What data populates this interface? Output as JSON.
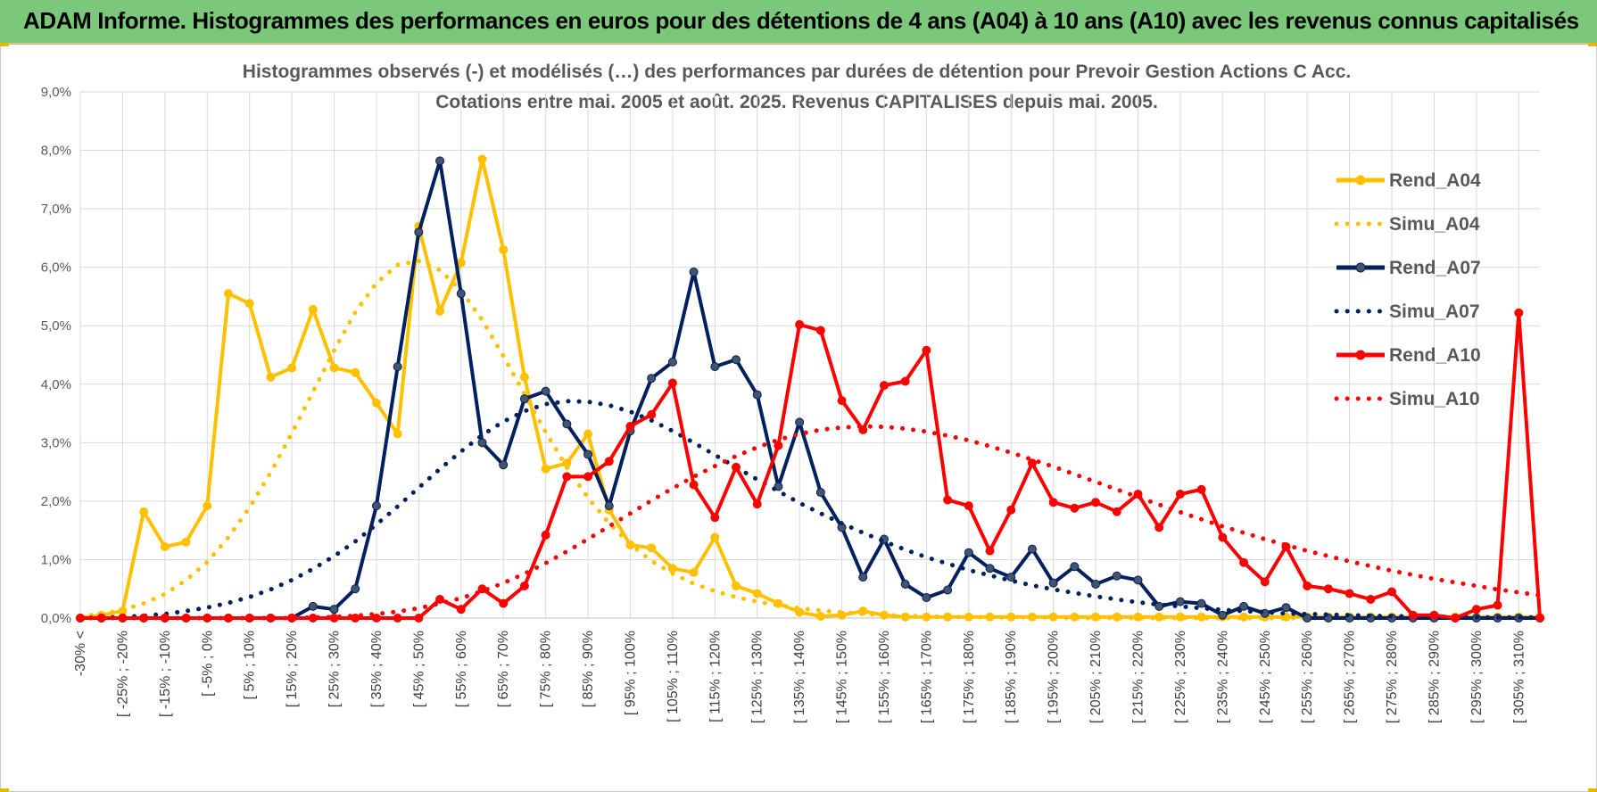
{
  "banner": {
    "title": "ADAM Informe. Histogrammes des performances en euros pour des détentions de 4 ans (A04) à 10 ans (A10) avec les revenus connus capitalisés"
  },
  "colors": {
    "banner_bg": "#7cc87a",
    "A04": "#ffc000",
    "A07": "#002060",
    "A10": "#ff0000"
  },
  "chart_data": {
    "type": "line",
    "title_line1": "Histogrammes observés (-) et modélisés (…) des performances par durées de détention pour Prevoir Gestion Actions C Acc.",
    "title_line2": "Cotations entre mai. 2005 et août. 2025. Revenus CAPITALISES depuis mai. 2005.",
    "ylim": [
      0,
      9
    ],
    "yticks": [
      "0,0%",
      "1,0%",
      "2,0%",
      "3,0%",
      "4,0%",
      "5,0%",
      "6,0%",
      "7,0%",
      "8,0%",
      "9,0%"
    ],
    "y_unit": "%",
    "grid": true,
    "legend_position": "right",
    "x_tick_labels": [
      "-30% <",
      "[ -25% ; -20%",
      "[ -15% ; -10%",
      "[ -5% ; 0%",
      "[ 5% ; 10%",
      "[ 15% ; 20%",
      "[ 25% ; 30%",
      "[ 35% ; 40%",
      "[ 45% ; 50%",
      "[ 55% ; 60%",
      "[ 65% ; 70%",
      "[ 75% ; 80%",
      "[ 85% ; 90%",
      "[ 95% ; 100%",
      "[ 105% ; 110%",
      "[ 115% ; 120%",
      "[ 125% ; 130%",
      "[ 135% ; 140%",
      "[ 145% ; 150%",
      "[ 155% ; 160%",
      "[ 165% ; 170%",
      "[ 175% ; 180%",
      "[ 185% ; 190%",
      "[ 195% ; 200%",
      "[ 205% ; 210%",
      "[ 215% ; 220%",
      "[ 225% ; 230%",
      "[ 235% ; 240%",
      "[ 245% ; 250%",
      "[ 255% ; 260%",
      "[ 265% ; 270%",
      "[ 275% ; 280%",
      "[ 285% ; 290%",
      "[ 295% ; 300%",
      "[ 305% ; 310%"
    ],
    "n_points": 70,
    "series": [
      {
        "name": "Rend_A04",
        "style": "solid",
        "color": "#ffc000",
        "values": [
          0,
          0.05,
          0.12,
          1.82,
          1.22,
          1.3,
          1.92,
          5.55,
          5.38,
          4.12,
          4.28,
          5.28,
          4.28,
          4.2,
          3.68,
          3.15,
          6.7,
          5.25,
          6.08,
          7.85,
          6.3,
          4.12,
          2.55,
          2.65,
          3.15,
          1.85,
          1.25,
          1.2,
          0.85,
          0.78,
          1.38,
          0.55,
          0.42,
          0.25,
          0.1,
          0.03,
          0.05,
          0.12,
          0.05,
          0.02,
          0.02,
          0.02,
          0.02,
          0.02,
          0.02,
          0.02,
          0.02,
          0.02,
          0.02,
          0.02,
          0.02,
          0.02,
          0.02,
          0.02,
          0.02,
          0.02,
          0.02,
          0.02,
          0.02,
          0.02,
          0.02,
          0.02,
          0.02,
          0.02,
          0.02,
          0.02,
          0.02,
          0.02,
          0.02,
          0.02
        ]
      },
      {
        "name": "Simu_A04",
        "style": "dotted",
        "color": "#ffc000",
        "values": [
          0.03,
          0.07,
          0.14,
          0.25,
          0.41,
          0.65,
          0.96,
          1.38,
          1.89,
          2.49,
          3.16,
          3.87,
          4.58,
          5.23,
          5.73,
          6.04,
          6.11,
          5.95,
          5.6,
          5.1,
          4.48,
          3.83,
          3.18,
          2.58,
          2.06,
          1.62,
          1.26,
          0.98,
          0.76,
          0.59,
          0.46,
          0.36,
          0.28,
          0.22,
          0.17,
          0.13,
          0.1,
          0.07,
          0.05,
          0.04,
          0.03,
          0.02,
          0.02,
          0.01,
          0.01,
          0.01,
          0.01,
          0,
          0,
          0,
          0,
          0,
          0,
          0,
          0,
          0,
          0,
          0,
          0,
          0,
          0,
          0,
          0,
          0,
          0,
          0,
          0,
          0,
          0,
          0
        ]
      },
      {
        "name": "Rend_A07",
        "style": "solid",
        "color": "#002060",
        "values": [
          0,
          0,
          0,
          0,
          0,
          0,
          0,
          0,
          0,
          0,
          0,
          0.2,
          0.15,
          0.5,
          1.92,
          4.3,
          6.6,
          7.82,
          5.55,
          3.0,
          2.62,
          3.75,
          3.88,
          3.32,
          2.8,
          1.92,
          3.2,
          4.1,
          4.38,
          5.92,
          4.3,
          4.42,
          3.82,
          2.25,
          3.35,
          2.15,
          1.55,
          0.7,
          1.35,
          0.58,
          0.35,
          0.48,
          1.12,
          0.85,
          0.7,
          1.18,
          0.6,
          0.88,
          0.58,
          0.72,
          0.65,
          0.2,
          0.28,
          0.25,
          0.05,
          0.2,
          0.08,
          0.18,
          0,
          0,
          0,
          0,
          0,
          0,
          0,
          0,
          0,
          0,
          0,
          0
        ]
      },
      {
        "name": "Simu_A07",
        "style": "dotted",
        "color": "#002060",
        "values": [
          0,
          0.01,
          0.02,
          0.04,
          0.07,
          0.12,
          0.18,
          0.26,
          0.36,
          0.49,
          0.65,
          0.84,
          1.06,
          1.31,
          1.6,
          1.91,
          2.23,
          2.55,
          2.85,
          3.13,
          3.36,
          3.54,
          3.66,
          3.71,
          3.7,
          3.64,
          3.53,
          3.38,
          3.2,
          3.0,
          2.79,
          2.58,
          2.37,
          2.17,
          1.97,
          1.79,
          1.62,
          1.46,
          1.31,
          1.17,
          1.04,
          0.93,
          0.82,
          0.73,
          0.64,
          0.56,
          0.49,
          0.43,
          0.37,
          0.32,
          0.27,
          0.23,
          0.2,
          0.17,
          0.14,
          0.12,
          0.1,
          0.08,
          0.07,
          0.06,
          0.05,
          0.04,
          0.03,
          0.03,
          0.02,
          0.02,
          0.01,
          0.01,
          0.01,
          0.01
        ]
      },
      {
        "name": "Rend_A10",
        "style": "solid",
        "color": "#ff0000",
        "values": [
          0,
          0,
          0,
          0,
          0,
          0,
          0,
          0,
          0,
          0,
          0,
          0,
          0,
          0,
          0,
          0,
          0,
          0.32,
          0.15,
          0.5,
          0.25,
          0.55,
          1.42,
          2.42,
          2.42,
          2.68,
          3.28,
          3.48,
          4.02,
          2.28,
          1.72,
          2.58,
          1.95,
          2.95,
          5.02,
          4.92,
          3.72,
          3.22,
          3.98,
          4.05,
          4.58,
          2.02,
          1.92,
          1.15,
          1.85,
          2.65,
          1.98,
          1.88,
          1.98,
          1.82,
          2.12,
          1.55,
          2.12,
          2.2,
          1.38,
          0.95,
          0.62,
          1.22,
          0.55,
          0.5,
          0.42,
          0.32,
          0.45,
          0.05,
          0.05,
          0,
          0.15,
          0.22,
          5.22,
          0
        ]
      },
      {
        "name": "Simu_A10",
        "style": "dotted",
        "color": "#ff0000",
        "values": [
          0,
          0,
          0,
          0,
          0,
          0,
          0,
          0,
          0,
          0,
          0,
          0.01,
          0.02,
          0.04,
          0.07,
          0.11,
          0.17,
          0.25,
          0.34,
          0.46,
          0.6,
          0.76,
          0.94,
          1.14,
          1.35,
          1.57,
          1.79,
          2.01,
          2.22,
          2.42,
          2.6,
          2.77,
          2.92,
          3.05,
          3.15,
          3.22,
          3.26,
          3.28,
          3.27,
          3.24,
          3.19,
          3.12,
          3.04,
          2.94,
          2.83,
          2.71,
          2.59,
          2.46,
          2.33,
          2.2,
          2.07,
          1.94,
          1.81,
          1.69,
          1.57,
          1.46,
          1.35,
          1.25,
          1.15,
          1.06,
          0.97,
          0.89,
          0.81,
          0.74,
          0.67,
          0.61,
          0.55,
          0.49,
          0.44,
          0.39
        ]
      }
    ]
  }
}
